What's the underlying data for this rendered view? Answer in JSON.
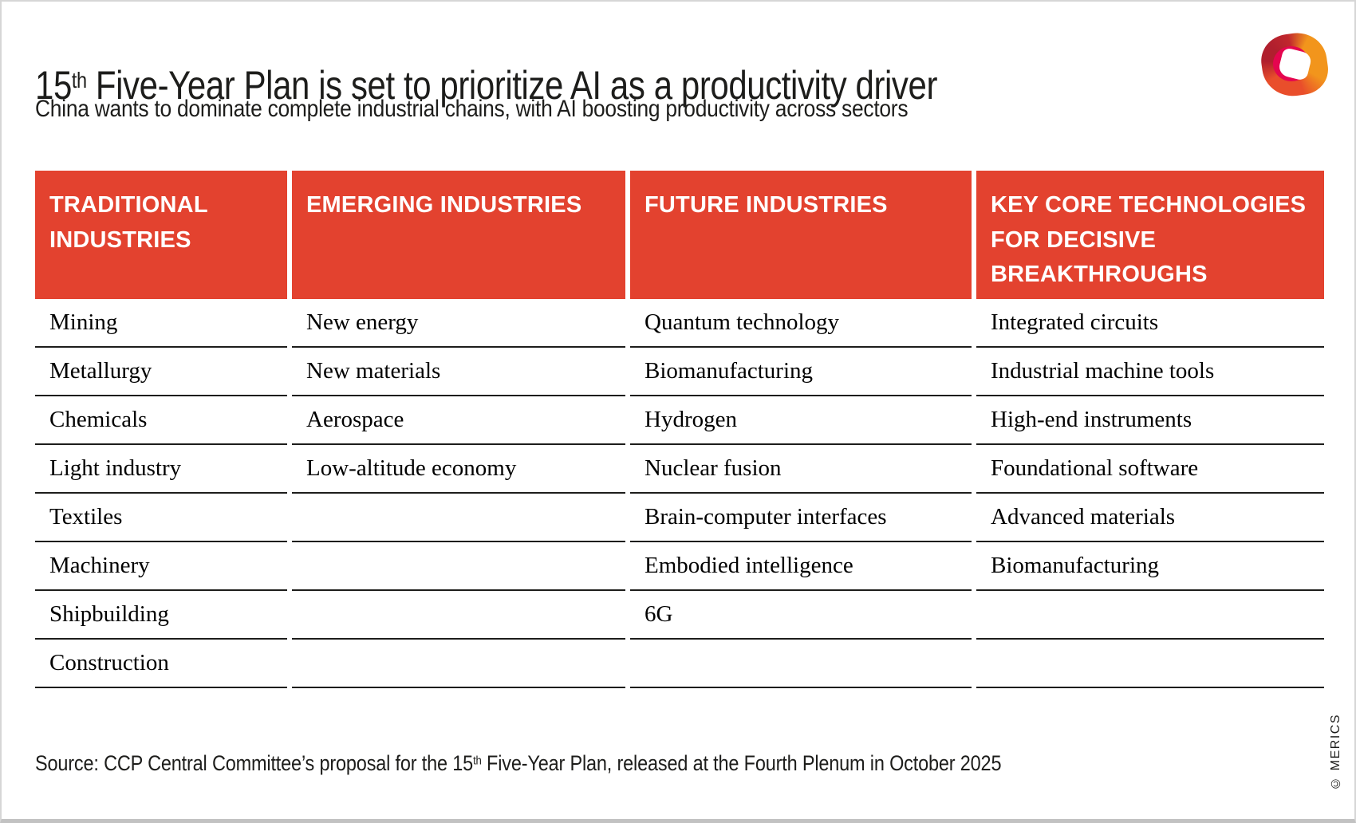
{
  "header": {
    "title_num": "15",
    "title_sup": "th",
    "title_rest": " Five-Year Plan is set to prioritize AI as a productivity driver",
    "subtitle": "China wants to dominate complete industrial chains, with AI boosting productivity across sectors"
  },
  "logo": {
    "name": "merics-logo",
    "colors": {
      "dark_red": "#b01f2e",
      "orange": "#f2951c",
      "orange_red": "#e94e2b",
      "magenta": "#e5054f"
    }
  },
  "colors": {
    "accent_red": "#e3422f",
    "text_dark": "#1d1d1b",
    "row_line": "#1d1d1b"
  },
  "table": {
    "columns": [
      {
        "header": "TRADITIONAL INDUSTRIES",
        "items": [
          "Mining",
          "Metallurgy",
          "Chemicals",
          "Light industry",
          "Textiles",
          "Machinery",
          "Shipbuilding",
          "Construction"
        ]
      },
      {
        "header": "EMERGING INDUSTRIES",
        "items": [
          "New energy",
          "New materials",
          "Aerospace",
          "Low-altitude economy",
          "",
          "",
          "",
          ""
        ]
      },
      {
        "header": "FUTURE INDUSTRIES",
        "items": [
          "Quantum technology",
          "Biomanufacturing",
          "Hydrogen",
          "Nuclear fusion",
          "Brain-computer interfaces",
          "Embodied intelligence",
          "6G",
          ""
        ]
      },
      {
        "header": "KEY CORE TECHNOLOGIES FOR DECISIVE BREAKTHROUGHS",
        "items": [
          "Integrated circuits",
          "Industrial machine tools",
          "High-end instruments",
          "Foundational software",
          "Advanced materials",
          "Biomanufacturing",
          "",
          ""
        ]
      }
    ]
  },
  "footer": {
    "source_prefix": "Source: CCP Central Committee’s proposal for the 15",
    "source_sup": "th",
    "source_suffix": " Five-Year Plan, released at the Fourth Plenum in October 2025",
    "copyright": "© MERICS"
  }
}
